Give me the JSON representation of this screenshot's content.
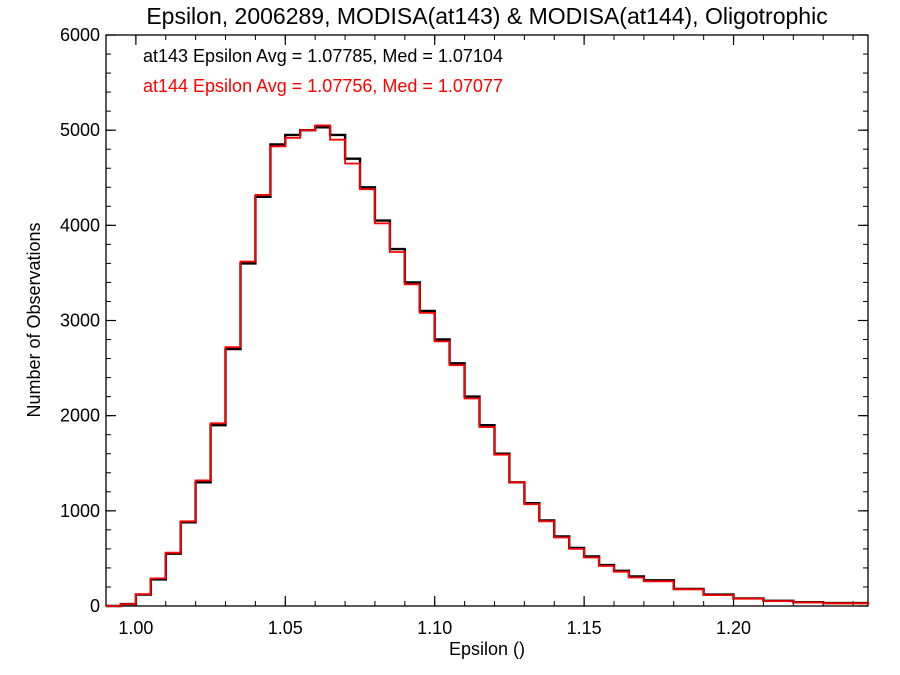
{
  "chart_data": {
    "type": "line",
    "title": "Epsilon, 2006289, MODISA(at143) & MODISA(at144), Oligotrophic",
    "xlabel": "Epsilon ()",
    "ylabel": "Number of Observations",
    "xlim": [
      0.99,
      1.245
    ],
    "ylim": [
      0,
      6000
    ],
    "x_ticks": [
      1.0,
      1.05,
      1.1,
      1.15,
      1.2
    ],
    "x_tick_labels": [
      "1.00",
      "1.05",
      "1.10",
      "1.15",
      "1.20"
    ],
    "y_ticks": [
      0,
      1000,
      2000,
      3000,
      4000,
      5000,
      6000
    ],
    "y_tick_labels": [
      "0",
      "1000",
      "2000",
      "3000",
      "4000",
      "5000",
      "6000"
    ],
    "grid": false,
    "step_plot": true,
    "annotations": [
      {
        "text": "at143 Epsilon Avg = 1.07785, Med = 1.07104",
        "color": "#000000"
      },
      {
        "text": "at144 Epsilon Avg = 1.07756, Med = 1.07077",
        "color": "#ff0000"
      }
    ],
    "x": [
      0.99,
      0.995,
      1.0,
      1.005,
      1.01,
      1.015,
      1.02,
      1.025,
      1.03,
      1.035,
      1.04,
      1.045,
      1.05,
      1.055,
      1.06,
      1.065,
      1.07,
      1.075,
      1.08,
      1.085,
      1.09,
      1.095,
      1.1,
      1.105,
      1.11,
      1.115,
      1.12,
      1.125,
      1.13,
      1.135,
      1.14,
      1.145,
      1.15,
      1.155,
      1.16,
      1.165,
      1.17,
      1.18,
      1.19,
      1.2,
      1.21,
      1.22,
      1.23,
      1.245
    ],
    "series": [
      {
        "name": "at143",
        "color": "#000000",
        "values": [
          0,
          20,
          120,
          280,
          550,
          880,
          1300,
          1900,
          2700,
          3600,
          4300,
          4850,
          4950,
          5000,
          5030,
          4950,
          4700,
          4400,
          4050,
          3750,
          3400,
          3100,
          2800,
          2550,
          2200,
          1900,
          1600,
          1300,
          1080,
          900,
          730,
          610,
          520,
          430,
          370,
          310,
          270,
          180,
          120,
          80,
          55,
          40,
          30,
          20
        ]
      },
      {
        "name": "at144",
        "color": "#ff0000",
        "values": [
          0,
          20,
          125,
          290,
          560,
          890,
          1320,
          1920,
          2720,
          3620,
          4320,
          4830,
          4920,
          5000,
          5050,
          4900,
          4650,
          4380,
          4020,
          3720,
          3380,
          3080,
          2780,
          2530,
          2180,
          1880,
          1590,
          1300,
          1070,
          890,
          720,
          600,
          510,
          420,
          360,
          300,
          260,
          175,
          115,
          78,
          52,
          38,
          28,
          20
        ]
      }
    ]
  }
}
